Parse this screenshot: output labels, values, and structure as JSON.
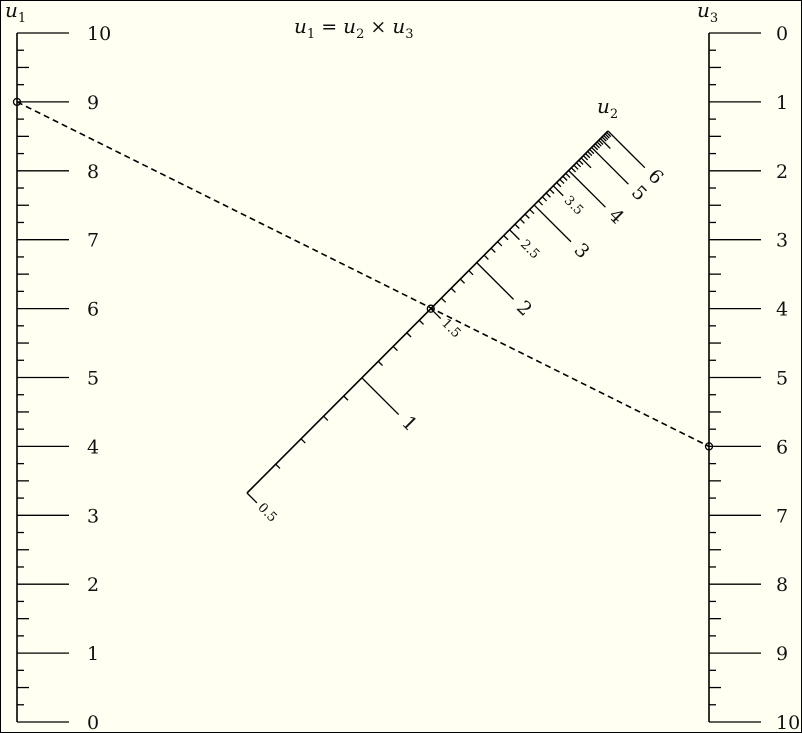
{
  "title": {
    "u1": "u",
    "s1": "1",
    "eq": " = ",
    "u2": "u",
    "s2": "2",
    "times": " × ",
    "u3": "u",
    "s3": "3"
  },
  "scales": {
    "u1": {
      "name": "u",
      "sub": "1",
      "labels": [
        "0",
        "1",
        "2",
        "3",
        "4",
        "5",
        "6",
        "7",
        "8",
        "9",
        "10"
      ],
      "min": 0,
      "max": 10
    },
    "u2": {
      "name": "u",
      "sub": "2",
      "major_labels": [
        "1",
        "2",
        "3",
        "4",
        "5",
        "6"
      ],
      "minor_labels": [
        "0.5",
        "1.5",
        "2.5",
        "3.5"
      ],
      "min": 0.5,
      "max": 6
    },
    "u3": {
      "name": "u",
      "sub": "3",
      "labels": [
        "0",
        "1",
        "2",
        "3",
        "4",
        "5",
        "6",
        "7",
        "8",
        "9",
        "10"
      ],
      "min": 0,
      "max": 10
    }
  },
  "example": {
    "u1": 9,
    "u2": 1.5,
    "u3": 6
  }
}
